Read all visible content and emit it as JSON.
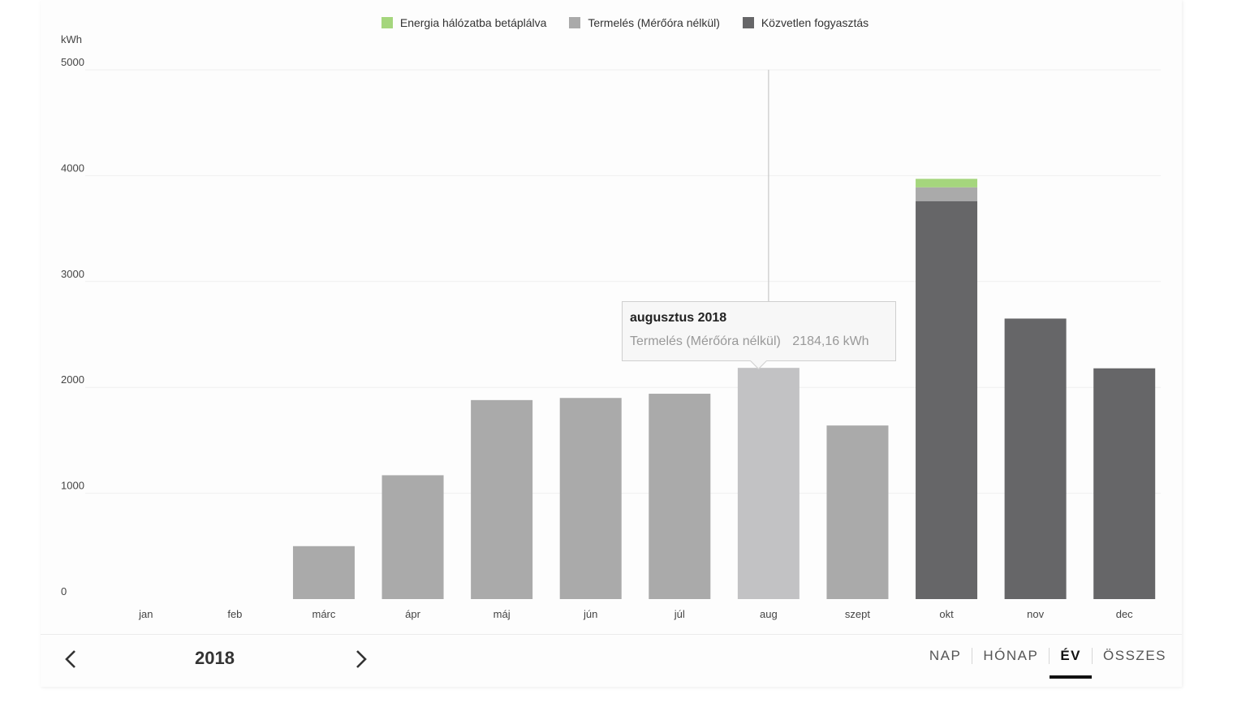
{
  "chart_data": {
    "type": "bar",
    "stacked": true,
    "categories": [
      "jan",
      "feb",
      "márc",
      "ápr",
      "máj",
      "jún",
      "júl",
      "aug",
      "szept",
      "okt",
      "nov",
      "dec"
    ],
    "series": [
      {
        "name": "Közvetlen fogyasztás",
        "color": "#666668",
        "values": [
          0,
          0,
          0,
          0,
          0,
          0,
          0,
          0,
          0,
          3760,
          2650,
          2180
        ]
      },
      {
        "name": "Termelés (Mérőóra nélkül)",
        "color": "#aaaaaa",
        "values": [
          0,
          0,
          500,
          1170,
          1880,
          1900,
          1940,
          2184.16,
          1640,
          130,
          0,
          0
        ]
      },
      {
        "name": "Energia hálózatba betáplálva",
        "color": "#a5d67d",
        "values": [
          0,
          0,
          0,
          0,
          0,
          0,
          0,
          0,
          0,
          80,
          0,
          0
        ]
      }
    ],
    "y_ticks": [
      "0",
      "1000",
      "2000",
      "3000",
      "4000",
      "5000"
    ],
    "ylim": [
      0,
      5000
    ],
    "ylabel": "kWh",
    "grid": true,
    "legend_position": "top-center",
    "highlighted_category": "aug",
    "highlight_color": "#c2c2c4"
  },
  "legend": [
    {
      "label": "Energia hálózatba betáplálva",
      "color": "#a5d67d"
    },
    {
      "label": "Termelés (Mérőóra nélkül)",
      "color": "#aaaaaa"
    },
    {
      "label": "Közvetlen fogyasztás",
      "color": "#666668"
    }
  ],
  "tooltip": {
    "title": "augusztus 2018",
    "series_label": "Termelés (Mérőóra nélkül)",
    "value": "2184,16 kWh"
  },
  "nav": {
    "year": "2018",
    "prev_icon": "chevron-left-icon",
    "next_icon": "chevron-right-icon"
  },
  "tabs": [
    {
      "label": "NAP",
      "active": false
    },
    {
      "label": "HÓNAP",
      "active": false
    },
    {
      "label": "ÉV",
      "active": true
    },
    {
      "label": "ÖSSZES",
      "active": false
    }
  ]
}
